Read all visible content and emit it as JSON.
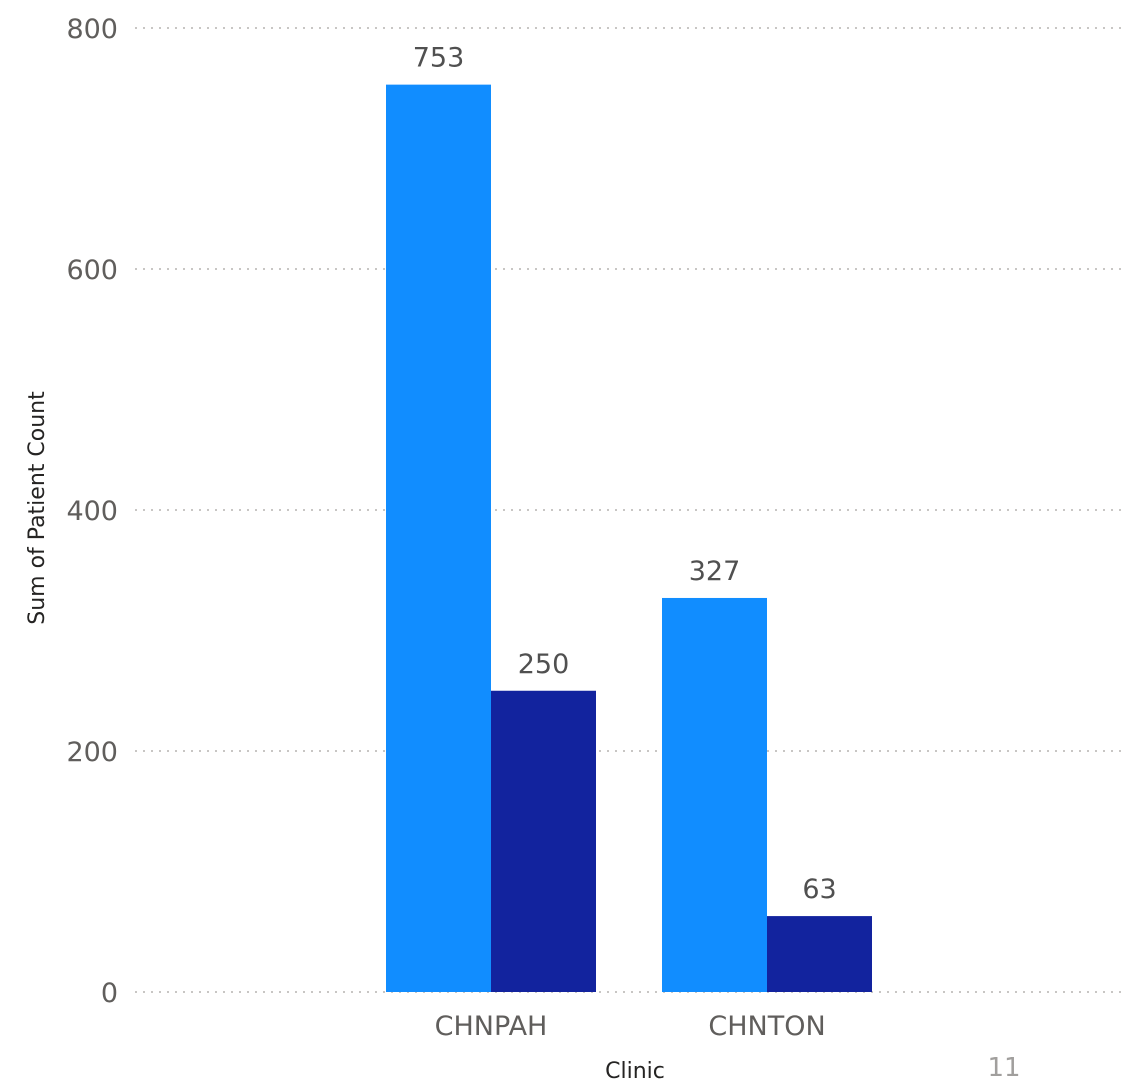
{
  "chart_data": {
    "type": "bar",
    "xlabel": "Clinic",
    "ylabel": "Sum of Patient Count",
    "ylim": [
      0,
      800
    ],
    "yticks": [
      0,
      200,
      400,
      600,
      800
    ],
    "grid": true,
    "categories": [
      "CHNPAH",
      "CHNTON"
    ],
    "series": [
      {
        "values": [
          753,
          327
        ],
        "color": "#118dff"
      },
      {
        "values": [
          250,
          63
        ],
        "color": "#12239e"
      }
    ],
    "data_labels": true
  },
  "footer": {
    "corner_mark": "11"
  }
}
